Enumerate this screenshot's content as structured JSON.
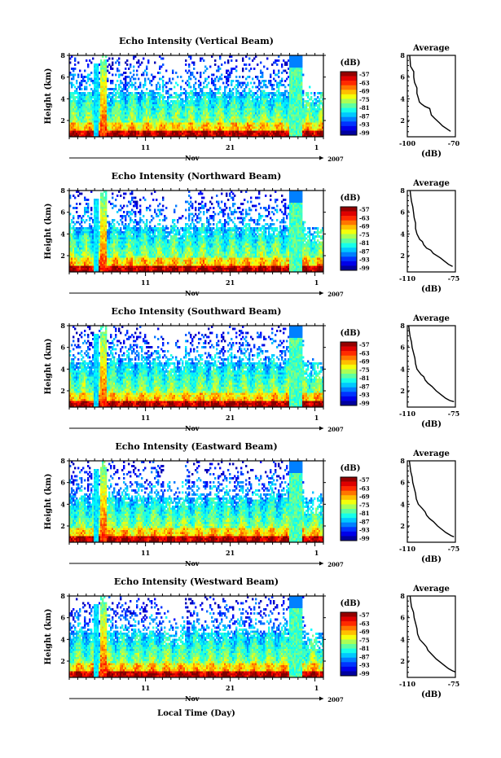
{
  "figure": {
    "xlabel": "Local Time (Day)",
    "month": "Nov",
    "year": "2007",
    "x_ticklabels": [
      "11",
      "21",
      "1"
    ],
    "y_label": "Height (km)",
    "y_ticklabels": [
      "2",
      "4",
      "6",
      "8"
    ],
    "colorbar_unit": "(dB)",
    "colorbar_ticks": [
      "-57",
      "-63",
      "-69",
      "-75",
      "-81",
      "-87",
      "-93",
      "-99"
    ],
    "avg_title": "Average",
    "avg_xlabel": "(dB)"
  },
  "chart_data": [
    {
      "type": "heatmap",
      "title": "Echo Intensity (Vertical Beam)",
      "ylabel": "Height (km)",
      "ylim": [
        0.5,
        8
      ],
      "clim": [
        -99,
        -57
      ],
      "avg_profile": {
        "title": "Average",
        "xticks": [
          "-100",
          "-70"
        ],
        "xlim": [
          -100,
          -70
        ],
        "ylim": [
          0.5,
          8
        ],
        "points": [
          [
            -98.5,
            8
          ],
          [
            -98.2,
            7.5
          ],
          [
            -98,
            7
          ],
          [
            -96,
            6.5
          ],
          [
            -96,
            6
          ],
          [
            -95.5,
            5.5
          ],
          [
            -94,
            5
          ],
          [
            -94,
            4.5
          ],
          [
            -93,
            4
          ],
          [
            -92.5,
            3.7
          ],
          [
            -91,
            3.5
          ],
          [
            -89,
            3.3
          ],
          [
            -86,
            3.1
          ],
          [
            -85,
            2.5
          ],
          [
            -83,
            2.2
          ],
          [
            -80,
            1.8
          ],
          [
            -78,
            1.5
          ],
          [
            -75,
            1.2
          ],
          [
            -73,
            1
          ]
        ]
      }
    },
    {
      "type": "heatmap",
      "title": "Echo Intensity (Northward Beam)",
      "ylabel": "Height (km)",
      "ylim": [
        0.5,
        8
      ],
      "clim": [
        -99,
        -57
      ],
      "avg_profile": {
        "title": "Average",
        "xticks": [
          "-110",
          "-75"
        ],
        "xlim": [
          -110,
          -75
        ],
        "ylim": [
          0.5,
          8
        ],
        "points": [
          [
            -108,
            8
          ],
          [
            -107.5,
            7.5
          ],
          [
            -107,
            7
          ],
          [
            -106,
            6.5
          ],
          [
            -105.5,
            6
          ],
          [
            -105,
            5.5
          ],
          [
            -104,
            5
          ],
          [
            -104,
            4.5
          ],
          [
            -103,
            4
          ],
          [
            -101,
            3.5
          ],
          [
            -99,
            3.3
          ],
          [
            -98,
            3
          ],
          [
            -96,
            2.7
          ],
          [
            -93,
            2.5
          ],
          [
            -91,
            2.2
          ],
          [
            -86,
            1.8
          ],
          [
            -83,
            1.5
          ],
          [
            -80,
            1.2
          ],
          [
            -77,
            1
          ]
        ]
      }
    },
    {
      "type": "heatmap",
      "title": "Echo Intensity (Southward Beam)",
      "ylabel": "Height (km)",
      "ylim": [
        0.5,
        8
      ],
      "clim": [
        -99,
        -57
      ],
      "avg_profile": {
        "title": "Average",
        "xticks": [
          "-110",
          "-75"
        ],
        "xlim": [
          -110,
          -75
        ],
        "ylim": [
          0.5,
          8
        ],
        "points": [
          [
            -109,
            8
          ],
          [
            -108.5,
            7.5
          ],
          [
            -108,
            7
          ],
          [
            -107,
            6.5
          ],
          [
            -106.5,
            6
          ],
          [
            -105.5,
            5.5
          ],
          [
            -104.5,
            5
          ],
          [
            -104,
            4.5
          ],
          [
            -103,
            4
          ],
          [
            -100,
            3.5
          ],
          [
            -98,
            3.3
          ],
          [
            -97,
            3
          ],
          [
            -95,
            2.7
          ],
          [
            -92,
            2.4
          ],
          [
            -89,
            2
          ],
          [
            -85,
            1.6
          ],
          [
            -82,
            1.3
          ],
          [
            -79,
            1.1
          ],
          [
            -76,
            1
          ]
        ]
      }
    },
    {
      "type": "heatmap",
      "title": "Echo Intensity (Eastward Beam)",
      "ylabel": "Height (km)",
      "ylim": [
        0.5,
        8
      ],
      "clim": [
        -99,
        -57
      ],
      "avg_profile": {
        "title": "Average",
        "xticks": [
          "-110",
          "-75"
        ],
        "xlim": [
          -110,
          -75
        ],
        "ylim": [
          0.5,
          8
        ],
        "points": [
          [
            -108.5,
            8
          ],
          [
            -108,
            7.5
          ],
          [
            -107.5,
            7
          ],
          [
            -106.5,
            6.5
          ],
          [
            -106,
            6
          ],
          [
            -105,
            5.5
          ],
          [
            -104,
            5
          ],
          [
            -103.5,
            4.5
          ],
          [
            -102,
            4
          ],
          [
            -99,
            3.6
          ],
          [
            -97,
            3.3
          ],
          [
            -96,
            3
          ],
          [
            -94,
            2.7
          ],
          [
            -91,
            2.4
          ],
          [
            -88,
            2
          ],
          [
            -85,
            1.7
          ],
          [
            -82,
            1.4
          ],
          [
            -78,
            1.1
          ],
          [
            -76,
            1
          ]
        ]
      }
    },
    {
      "type": "heatmap",
      "title": "Echo Intensity (Westward Beam)",
      "ylabel": "Height (km)",
      "ylim": [
        0.5,
        8
      ],
      "clim": [
        -99,
        -57
      ],
      "avg_profile": {
        "title": "Average",
        "xticks": [
          "-110",
          "-75"
        ],
        "xlim": [
          -110,
          -75
        ],
        "ylim": [
          0.5,
          8
        ],
        "points": [
          [
            -108,
            8
          ],
          [
            -107.5,
            7.5
          ],
          [
            -107,
            7
          ],
          [
            -105.5,
            6.5
          ],
          [
            -105,
            6
          ],
          [
            -104,
            5.5
          ],
          [
            -103,
            5
          ],
          [
            -102.5,
            4.5
          ],
          [
            -101,
            4
          ],
          [
            -98,
            3.6
          ],
          [
            -96,
            3.3
          ],
          [
            -95,
            3
          ],
          [
            -92,
            2.6
          ],
          [
            -89,
            2.2
          ],
          [
            -86,
            1.9
          ],
          [
            -83,
            1.6
          ],
          [
            -80,
            1.3
          ],
          [
            -77,
            1.1
          ],
          [
            -75,
            1
          ]
        ]
      }
    }
  ]
}
